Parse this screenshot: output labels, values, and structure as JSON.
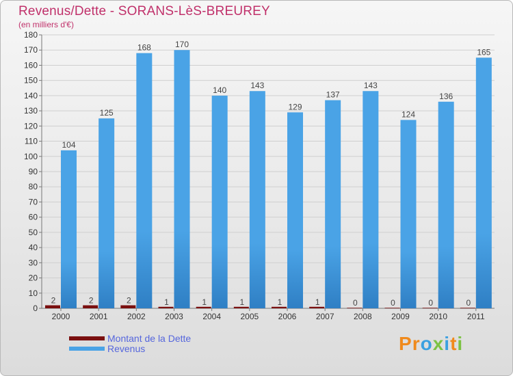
{
  "title": "Revenus/Dette - SORANS-LèS-BREUREY",
  "subtitle": "(en milliers d'€)",
  "legend": {
    "debt_label": "Montant de la Dette",
    "revenue_label": "Revenus"
  },
  "brand": {
    "letters": [
      "P",
      "r",
      "o",
      "x",
      "i",
      "t",
      "i"
    ]
  },
  "colors": {
    "debt": "#7a0f0f",
    "revenue": "#4aa3e6",
    "revenue_dark": "#2f7fc4",
    "title": "#c0306a",
    "legend_text": "#5566dd",
    "brand_letters": [
      "#f08a1c",
      "#f08a1c",
      "#3aa0e0",
      "#7cc243",
      "#3aa0e0",
      "#f08a1c",
      "#7cc243"
    ]
  },
  "chart_data": {
    "type": "bar",
    "categories": [
      "2000",
      "2001",
      "2002",
      "2003",
      "2004",
      "2005",
      "2006",
      "2007",
      "2008",
      "2009",
      "2010",
      "2011"
    ],
    "series": [
      {
        "name": "Montant de la Dette",
        "values": [
          2,
          2,
          2,
          1,
          1,
          1,
          1,
          1,
          0,
          0,
          0,
          0
        ]
      },
      {
        "name": "Revenus",
        "values": [
          104,
          125,
          168,
          170,
          140,
          143,
          129,
          137,
          143,
          124,
          136,
          165
        ]
      }
    ],
    "ylim": [
      0,
      180
    ],
    "yticks": [
      0,
      10,
      20,
      30,
      40,
      50,
      60,
      70,
      80,
      90,
      100,
      110,
      120,
      130,
      140,
      150,
      160,
      170,
      180
    ],
    "grid": true,
    "legend_position": "bottom-left"
  }
}
